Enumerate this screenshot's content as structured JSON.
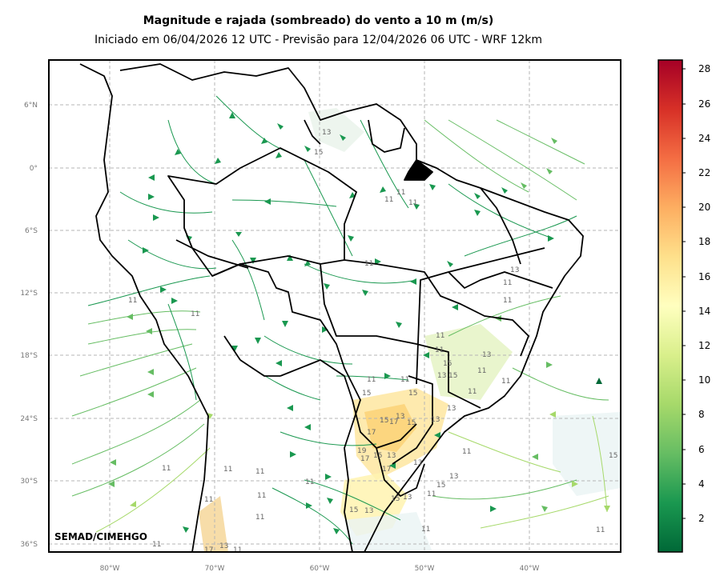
{
  "title": "Magnitude e rajada (sombreado) do vento a 10 m (m/s)",
  "subtitle": "Iniciado em 06/04/2026 12 UTC - Previsão para 12/04/2026 06 UTC - WRF 12km",
  "credit": "SEMAD/CIMEHGO",
  "lat_ticks": [
    "6°N",
    "0°",
    "6°S",
    "12°S",
    "18°S",
    "24°S",
    "30°S",
    "36°S"
  ],
  "lon_ticks": [
    "80°W",
    "70°W",
    "60°W",
    "50°W",
    "40°W"
  ],
  "colorbar": {
    "ticks": [
      "2",
      "4",
      "6",
      "8",
      "10",
      "12",
      "14",
      "16",
      "18",
      "20",
      "22",
      "24",
      "26",
      "28"
    ],
    "colors": [
      "#006837",
      "#1a9850",
      "#66bd63",
      "#a6d96a",
      "#d9ef8b",
      "#ffffbf",
      "#fee08b",
      "#fdae61",
      "#f46d43",
      "#d73027",
      "#a50026"
    ]
  },
  "gust_contour_labels": [
    "13",
    "15",
    "11",
    "11",
    "11",
    "11",
    "11",
    "11",
    "11",
    "13",
    "11",
    "11",
    "11",
    "13",
    "15",
    "11",
    "13",
    "15",
    "11",
    "11",
    "11",
    "11",
    "15",
    "15",
    "13",
    "13",
    "15",
    "17",
    "15",
    "13",
    "17",
    "19",
    "17",
    "13",
    "15",
    "17",
    "13",
    "11",
    "11",
    "11",
    "11",
    "11",
    "11",
    "11",
    "13",
    "15",
    "11",
    "13",
    "15",
    "15",
    "13",
    "11",
    "11",
    "15",
    "11",
    "11",
    "17",
    "13",
    "11"
  ]
}
